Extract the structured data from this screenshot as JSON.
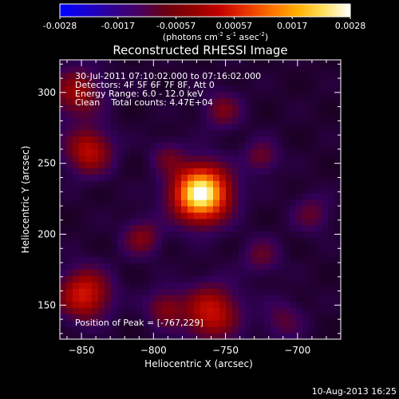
{
  "colorbar": {
    "ticks": [
      "-0.0028",
      "-0.0017",
      "-0.00057",
      "0.00057",
      "0.0017",
      "0.0028"
    ],
    "label_parts": [
      "(photons cm",
      "-2",
      " s",
      "-1",
      " asec",
      "-2",
      ")"
    ],
    "colors": [
      "#0000ff",
      "#1800d0",
      "#300090",
      "#480060",
      "#680010",
      "#900000",
      "#c00000",
      "#e83000",
      "#ff7000",
      "#ffb000",
      "#ffe060",
      "#ffffff"
    ]
  },
  "chart_data": {
    "type": "heatmap",
    "title": "Reconstructed RHESSI Image",
    "xlabel": "Heliocentric X (arcsec)",
    "ylabel": "Heliocentric Y (arcsec)",
    "xlim": [
      -865,
      -670
    ],
    "ylim": [
      126,
      323
    ],
    "xticks": [
      -850,
      -800,
      -750,
      -700
    ],
    "yticks": [
      150,
      200,
      250,
      300
    ],
    "colorscale": "RHESSI 3-color (black-red-yellow-white)",
    "annotations": [
      "30-Jul-2011 07:10:02.000 to 07:16:02.000",
      "Detectors: 4F 5F 6F 7F 8F, Att 0",
      "Energy Range: 6.0 - 12.0 keV",
      "Clean    Total counts: 4.47E+04"
    ],
    "peak_label": "Position of Peak = [-767,229]",
    "peak": [
      -767,
      229
    ],
    "sources": [
      {
        "x": -767,
        "y": 229,
        "amp": 1.0,
        "sigma": 13
      },
      {
        "x": -845,
        "y": 259,
        "amp": 0.38,
        "sigma": 11
      },
      {
        "x": -848,
        "y": 158,
        "amp": 0.45,
        "sigma": 12
      },
      {
        "x": -760,
        "y": 145,
        "amp": 0.42,
        "sigma": 13
      },
      {
        "x": -808,
        "y": 198,
        "amp": 0.24,
        "sigma": 9
      },
      {
        "x": -853,
        "y": 300,
        "amp": 0.3,
        "sigma": 12
      },
      {
        "x": -792,
        "y": 148,
        "amp": 0.24,
        "sigma": 9
      },
      {
        "x": -752,
        "y": 288,
        "amp": 0.22,
        "sigma": 9
      },
      {
        "x": -725,
        "y": 255,
        "amp": 0.2,
        "sigma": 8
      },
      {
        "x": -725,
        "y": 185,
        "amp": 0.17,
        "sigma": 9
      },
      {
        "x": -690,
        "y": 215,
        "amp": 0.17,
        "sigma": 9
      },
      {
        "x": -790,
        "y": 255,
        "amp": 0.16,
        "sigma": 8
      },
      {
        "x": -710,
        "y": 140,
        "amp": 0.15,
        "sigma": 10
      }
    ]
  },
  "footer": {
    "timestamp": "10-Aug-2013 16:25"
  }
}
